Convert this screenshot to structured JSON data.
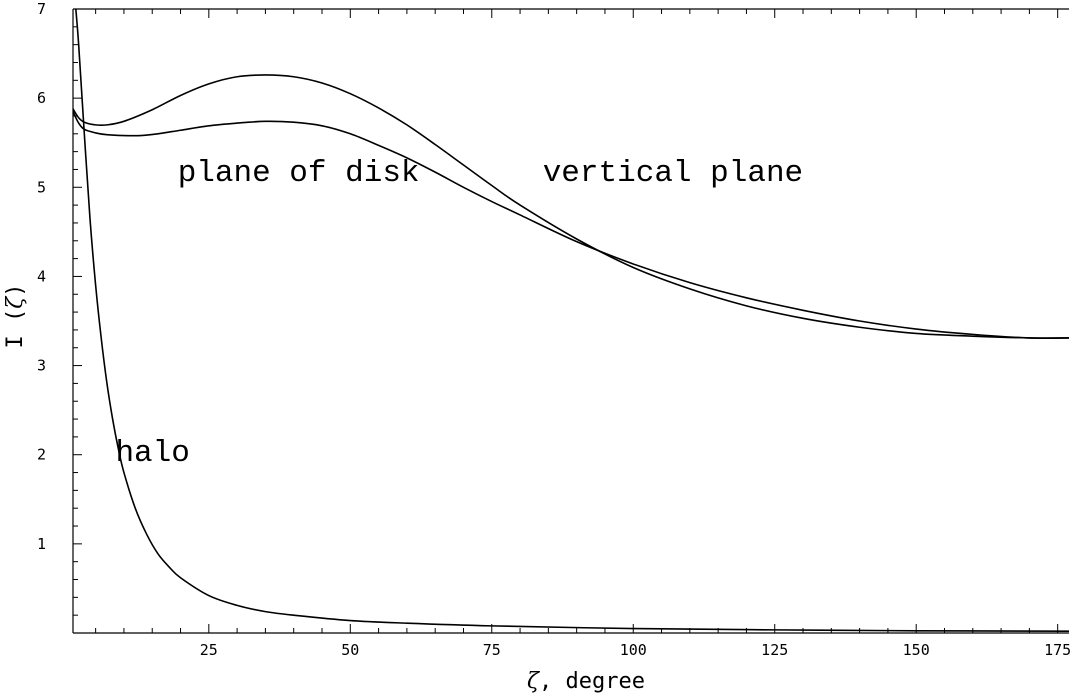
{
  "chart_data": {
    "type": "line",
    "title": "",
    "xlabel_symbol": "ζ",
    "xlabel_text": ", degree",
    "ylabel_text": "I (",
    "ylabel_symbol": "ζ",
    "ylabel_close": ")",
    "xlim": [
      1,
      177
    ],
    "ylim": [
      0,
      7
    ],
    "x_ticks": [
      25,
      50,
      75,
      100,
      125,
      150,
      175
    ],
    "y_ticks": [
      1,
      2,
      3,
      4,
      5,
      6,
      7
    ],
    "grid": false,
    "legend": "none",
    "annotations": [
      {
        "text": "plane of disk",
        "x": 19.5,
        "y": 5.07
      },
      {
        "text": "vertical plane",
        "x": 84,
        "y": 5.07
      },
      {
        "text": "halo",
        "x": 8.5,
        "y": 1.93
      }
    ],
    "series": [
      {
        "id": "vertical-plane",
        "x": [
          1,
          2,
          3,
          5,
          7,
          10,
          15,
          20,
          25,
          30,
          35,
          40,
          45,
          50,
          55,
          60,
          65,
          70,
          75,
          80,
          90,
          100,
          110,
          120,
          130,
          140,
          150,
          160,
          170,
          177
        ],
        "y": [
          5.88,
          5.78,
          5.73,
          5.7,
          5.7,
          5.74,
          5.87,
          6.03,
          6.16,
          6.24,
          6.26,
          6.24,
          6.17,
          6.05,
          5.89,
          5.7,
          5.48,
          5.25,
          5.02,
          4.8,
          4.42,
          4.1,
          3.86,
          3.67,
          3.53,
          3.43,
          3.36,
          3.33,
          3.31,
          3.31
        ]
      },
      {
        "id": "plane-of-disk",
        "x": [
          1,
          2,
          3,
          5,
          7,
          10,
          13,
          16,
          20,
          25,
          30,
          35,
          40,
          45,
          50,
          55,
          60,
          65,
          70,
          75,
          80,
          90,
          100,
          110,
          120,
          130,
          140,
          150,
          160,
          170,
          177
        ],
        "y": [
          5.85,
          5.72,
          5.65,
          5.61,
          5.59,
          5.58,
          5.58,
          5.6,
          5.64,
          5.69,
          5.72,
          5.74,
          5.73,
          5.69,
          5.6,
          5.47,
          5.33,
          5.17,
          5.0,
          4.84,
          4.69,
          4.39,
          4.14,
          3.93,
          3.76,
          3.62,
          3.5,
          3.41,
          3.35,
          3.31,
          3.31
        ]
      },
      {
        "id": "halo",
        "x": [
          1.5,
          2,
          3,
          4,
          5,
          6,
          7,
          8,
          9,
          10,
          12,
          14,
          16,
          18,
          20,
          25,
          30,
          35,
          40,
          50,
          60,
          75,
          100,
          125,
          150,
          177
        ],
        "y": [
          7.0,
          6.6,
          5.6,
          4.65,
          3.9,
          3.3,
          2.8,
          2.4,
          2.07,
          1.8,
          1.4,
          1.11,
          0.89,
          0.74,
          0.62,
          0.42,
          0.31,
          0.24,
          0.2,
          0.14,
          0.11,
          0.08,
          0.05,
          0.035,
          0.025,
          0.02
        ]
      }
    ]
  }
}
